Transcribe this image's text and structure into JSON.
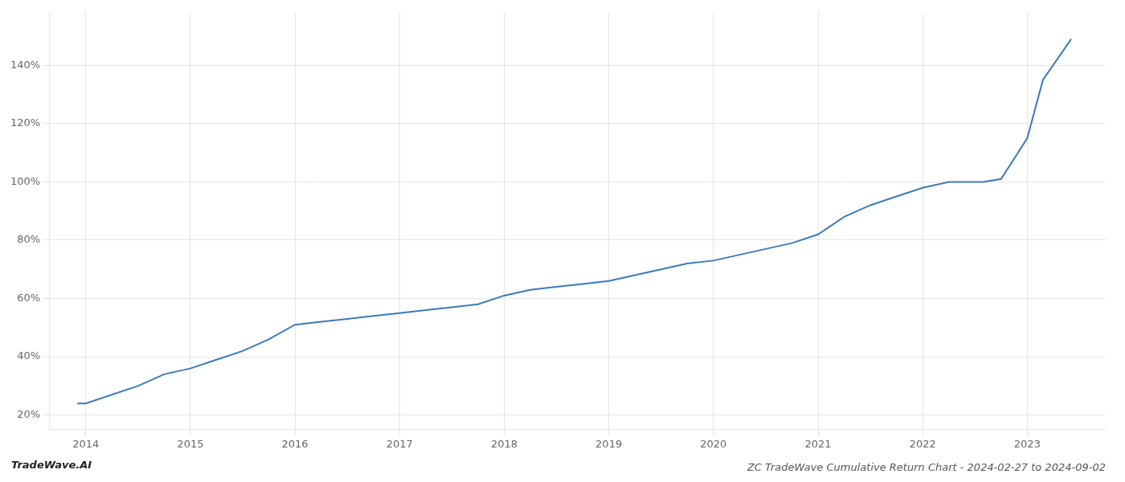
{
  "chart_data": {
    "type": "line",
    "title": "ZC TradeWave Cumulative Return Chart - 2024-02-27 to 2024-09-02",
    "annotations": [
      "TradeWave.AI"
    ],
    "color": "#3a7abf",
    "x": [
      2013.92,
      2014.0,
      2014.25,
      2014.5,
      2014.75,
      2015.0,
      2015.25,
      2015.5,
      2015.75,
      2016.0,
      2016.25,
      2016.5,
      2016.75,
      2017.0,
      2017.25,
      2017.5,
      2017.75,
      2018.0,
      2018.25,
      2018.5,
      2018.75,
      2019.0,
      2019.25,
      2019.5,
      2019.75,
      2020.0,
      2020.25,
      2020.5,
      2020.75,
      2021.0,
      2021.25,
      2021.5,
      2021.75,
      2022.0,
      2022.25,
      2022.42,
      2022.58,
      2022.75,
      2023.0,
      2023.15,
      2023.42
    ],
    "values": [
      24,
      24,
      27,
      30,
      34,
      36,
      39,
      42,
      46,
      51,
      52,
      53,
      54,
      55,
      56,
      57,
      58,
      61,
      63,
      64,
      65,
      66,
      68,
      70,
      72,
      73,
      75,
      77,
      79,
      82,
      88,
      92,
      95,
      98,
      100,
      100,
      100,
      101,
      115,
      135,
      149
    ],
    "xlim": [
      2013.65,
      2023.75
    ],
    "ylim": [
      15,
      158
    ],
    "xticks": [
      2014,
      2015,
      2016,
      2017,
      2018,
      2019,
      2020,
      2021,
      2022,
      2023
    ],
    "yticks": [
      {
        "value": 20,
        "label": "20%"
      },
      {
        "value": 40,
        "label": "40%"
      },
      {
        "value": 60,
        "label": "60%"
      },
      {
        "value": 80,
        "label": "80%"
      },
      {
        "value": 100,
        "label": "100%"
      },
      {
        "value": 120,
        "label": "120%"
      },
      {
        "value": 140,
        "label": "140%"
      }
    ],
    "grid": true
  }
}
